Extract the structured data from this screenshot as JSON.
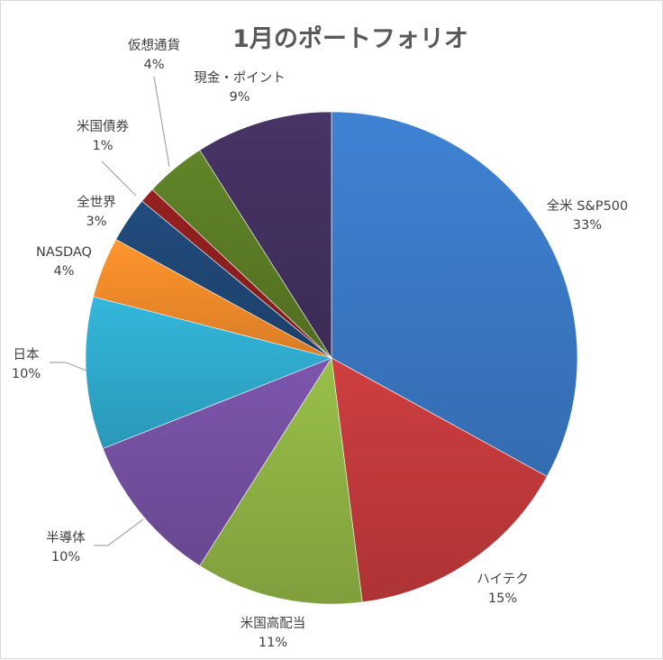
{
  "chart_data": {
    "type": "pie",
    "title": "1月のポートフォリオ",
    "slices": [
      {
        "name": "全米 S&P500",
        "value": 33,
        "label": "33%",
        "color": "#3A78C4"
      },
      {
        "name": "ハイテク",
        "value": 15,
        "label": "15%",
        "color": "#C0393B"
      },
      {
        "name": "米国高配当",
        "value": 11,
        "label": "11%",
        "color": "#8DB144"
      },
      {
        "name": "半導体",
        "value": 10,
        "label": "10%",
        "color": "#7450A0"
      },
      {
        "name": "日本",
        "value": 10,
        "label": "10%",
        "color": "#2FA9CC"
      },
      {
        "name": "NASDAQ",
        "value": 4,
        "label": "4%",
        "color": "#F18A2A"
      },
      {
        "name": "全世界",
        "value": 3,
        "label": "3%",
        "color": "#1F4674"
      },
      {
        "name": "米国債券",
        "value": 1,
        "label": "1%",
        "color": "#8B1F1E"
      },
      {
        "name": "仮想通貨",
        "value": 4,
        "label": "4%",
        "color": "#5A7A25"
      },
      {
        "name": "現金・ポイント",
        "value": 9,
        "label": "9%",
        "color": "#43305E"
      }
    ],
    "start_angle": "12 o'clock",
    "direction": "clockwise",
    "legend": "none (data labels outside)"
  }
}
